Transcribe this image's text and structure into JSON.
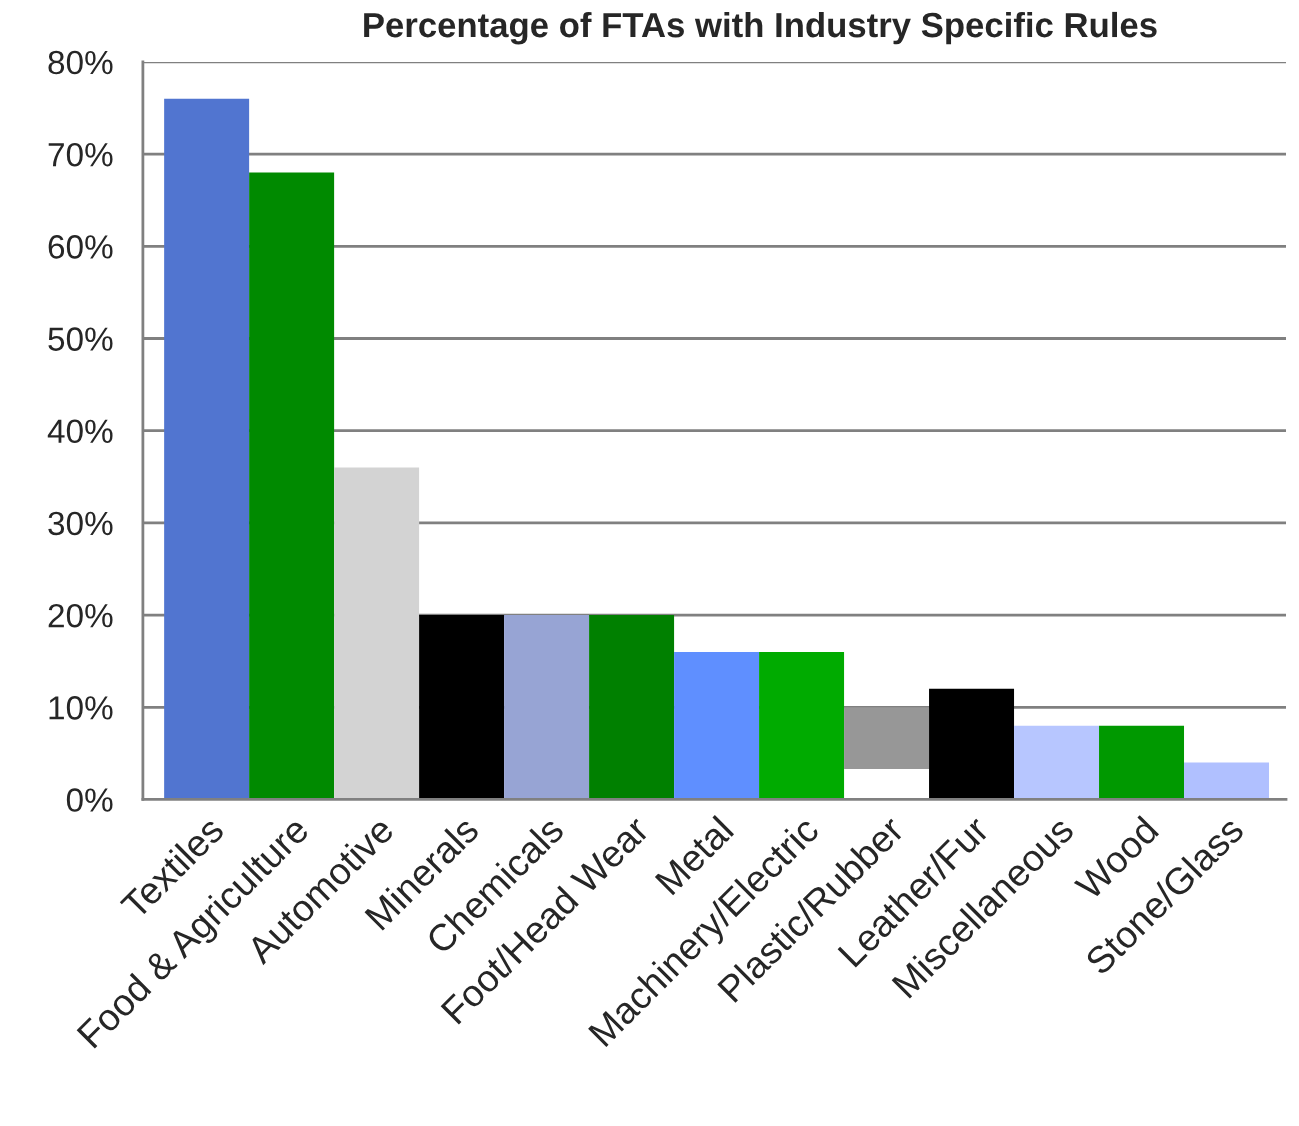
{
  "chart_data": {
    "type": "bar",
    "title": "Percentage of FTAs with Industry Specific Rules",
    "categories": [
      "Textiles",
      "Food & Agriculture",
      "Automotive",
      "Minerals",
      "Chemicals",
      "Foot/Head Wear",
      "Metal",
      "Machinery/Electric",
      "Plastic/Rubber",
      "Leather/Fur",
      "Miscellaneous",
      "Wood",
      "Stone/Glass"
    ],
    "values": [
      76,
      68,
      36,
      20,
      20,
      20,
      16,
      16,
      6.7,
      12,
      8,
      8,
      4
    ],
    "base": [
      0,
      0,
      0,
      0,
      0,
      0,
      0,
      0,
      3.3,
      0,
      0,
      0,
      0
    ],
    "colors": [
      "#5175d0",
      "#008a00",
      "#d3d3d3",
      "#000000",
      "#97a4d4",
      "#008000",
      "#5f8fff",
      "#00ab00",
      "#979797",
      "#000000",
      "#b7c6ff",
      "#009900",
      "#b0c0ff"
    ],
    "ylim": [
      0,
      80
    ],
    "yticks": [
      {
        "value": 0,
        "label": "0%"
      },
      {
        "value": 10,
        "label": "10%"
      },
      {
        "value": 20,
        "label": "20%"
      },
      {
        "value": 30,
        "label": "30%"
      },
      {
        "value": 40,
        "label": "40%"
      },
      {
        "value": 50,
        "label": "50%"
      },
      {
        "value": 60,
        "label": "60%"
      },
      {
        "value": 70,
        "label": "70%"
      },
      {
        "value": 80,
        "label": "80%"
      }
    ],
    "grid": "y",
    "legend": false
  }
}
